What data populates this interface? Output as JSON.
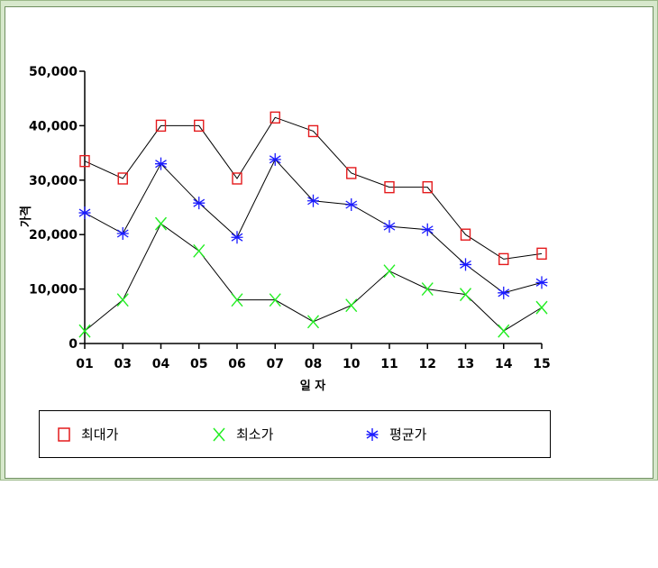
{
  "chart_data": {
    "type": "line",
    "title": "",
    "xlabel": "일 자",
    "ylabel": "가격",
    "categories": [
      "01",
      "03",
      "04",
      "05",
      "06",
      "07",
      "08",
      "10",
      "11",
      "12",
      "13",
      "14",
      "15"
    ],
    "ylim": [
      0,
      50000
    ],
    "yticks": [
      0,
      10000,
      20000,
      30000,
      40000,
      50000
    ],
    "ytick_labels": [
      "0",
      "10,000",
      "20,000",
      "30,000",
      "40,000",
      "50,000"
    ],
    "grid": false,
    "legend_position": "bottom",
    "series": [
      {
        "name": "최대가",
        "marker": "square",
        "color": "#e41a1c",
        "values": [
          33500,
          30300,
          40000,
          40000,
          30300,
          41500,
          39000,
          31300,
          28700,
          28700,
          20000,
          15500,
          16500
        ]
      },
      {
        "name": "최소가",
        "marker": "x",
        "color": "#22ee22",
        "values": [
          2300,
          8000,
          22000,
          17000,
          8000,
          8000,
          4000,
          7000,
          13300,
          10000,
          9000,
          2300,
          6600
        ]
      },
      {
        "name": "평균가",
        "marker": "asterisk",
        "color": "#1a1aff",
        "values": [
          24000,
          20200,
          33000,
          25800,
          19500,
          33800,
          26200,
          25500,
          21500,
          20900,
          14500,
          9300,
          11200
        ]
      }
    ],
    "line_color": "#000000"
  }
}
